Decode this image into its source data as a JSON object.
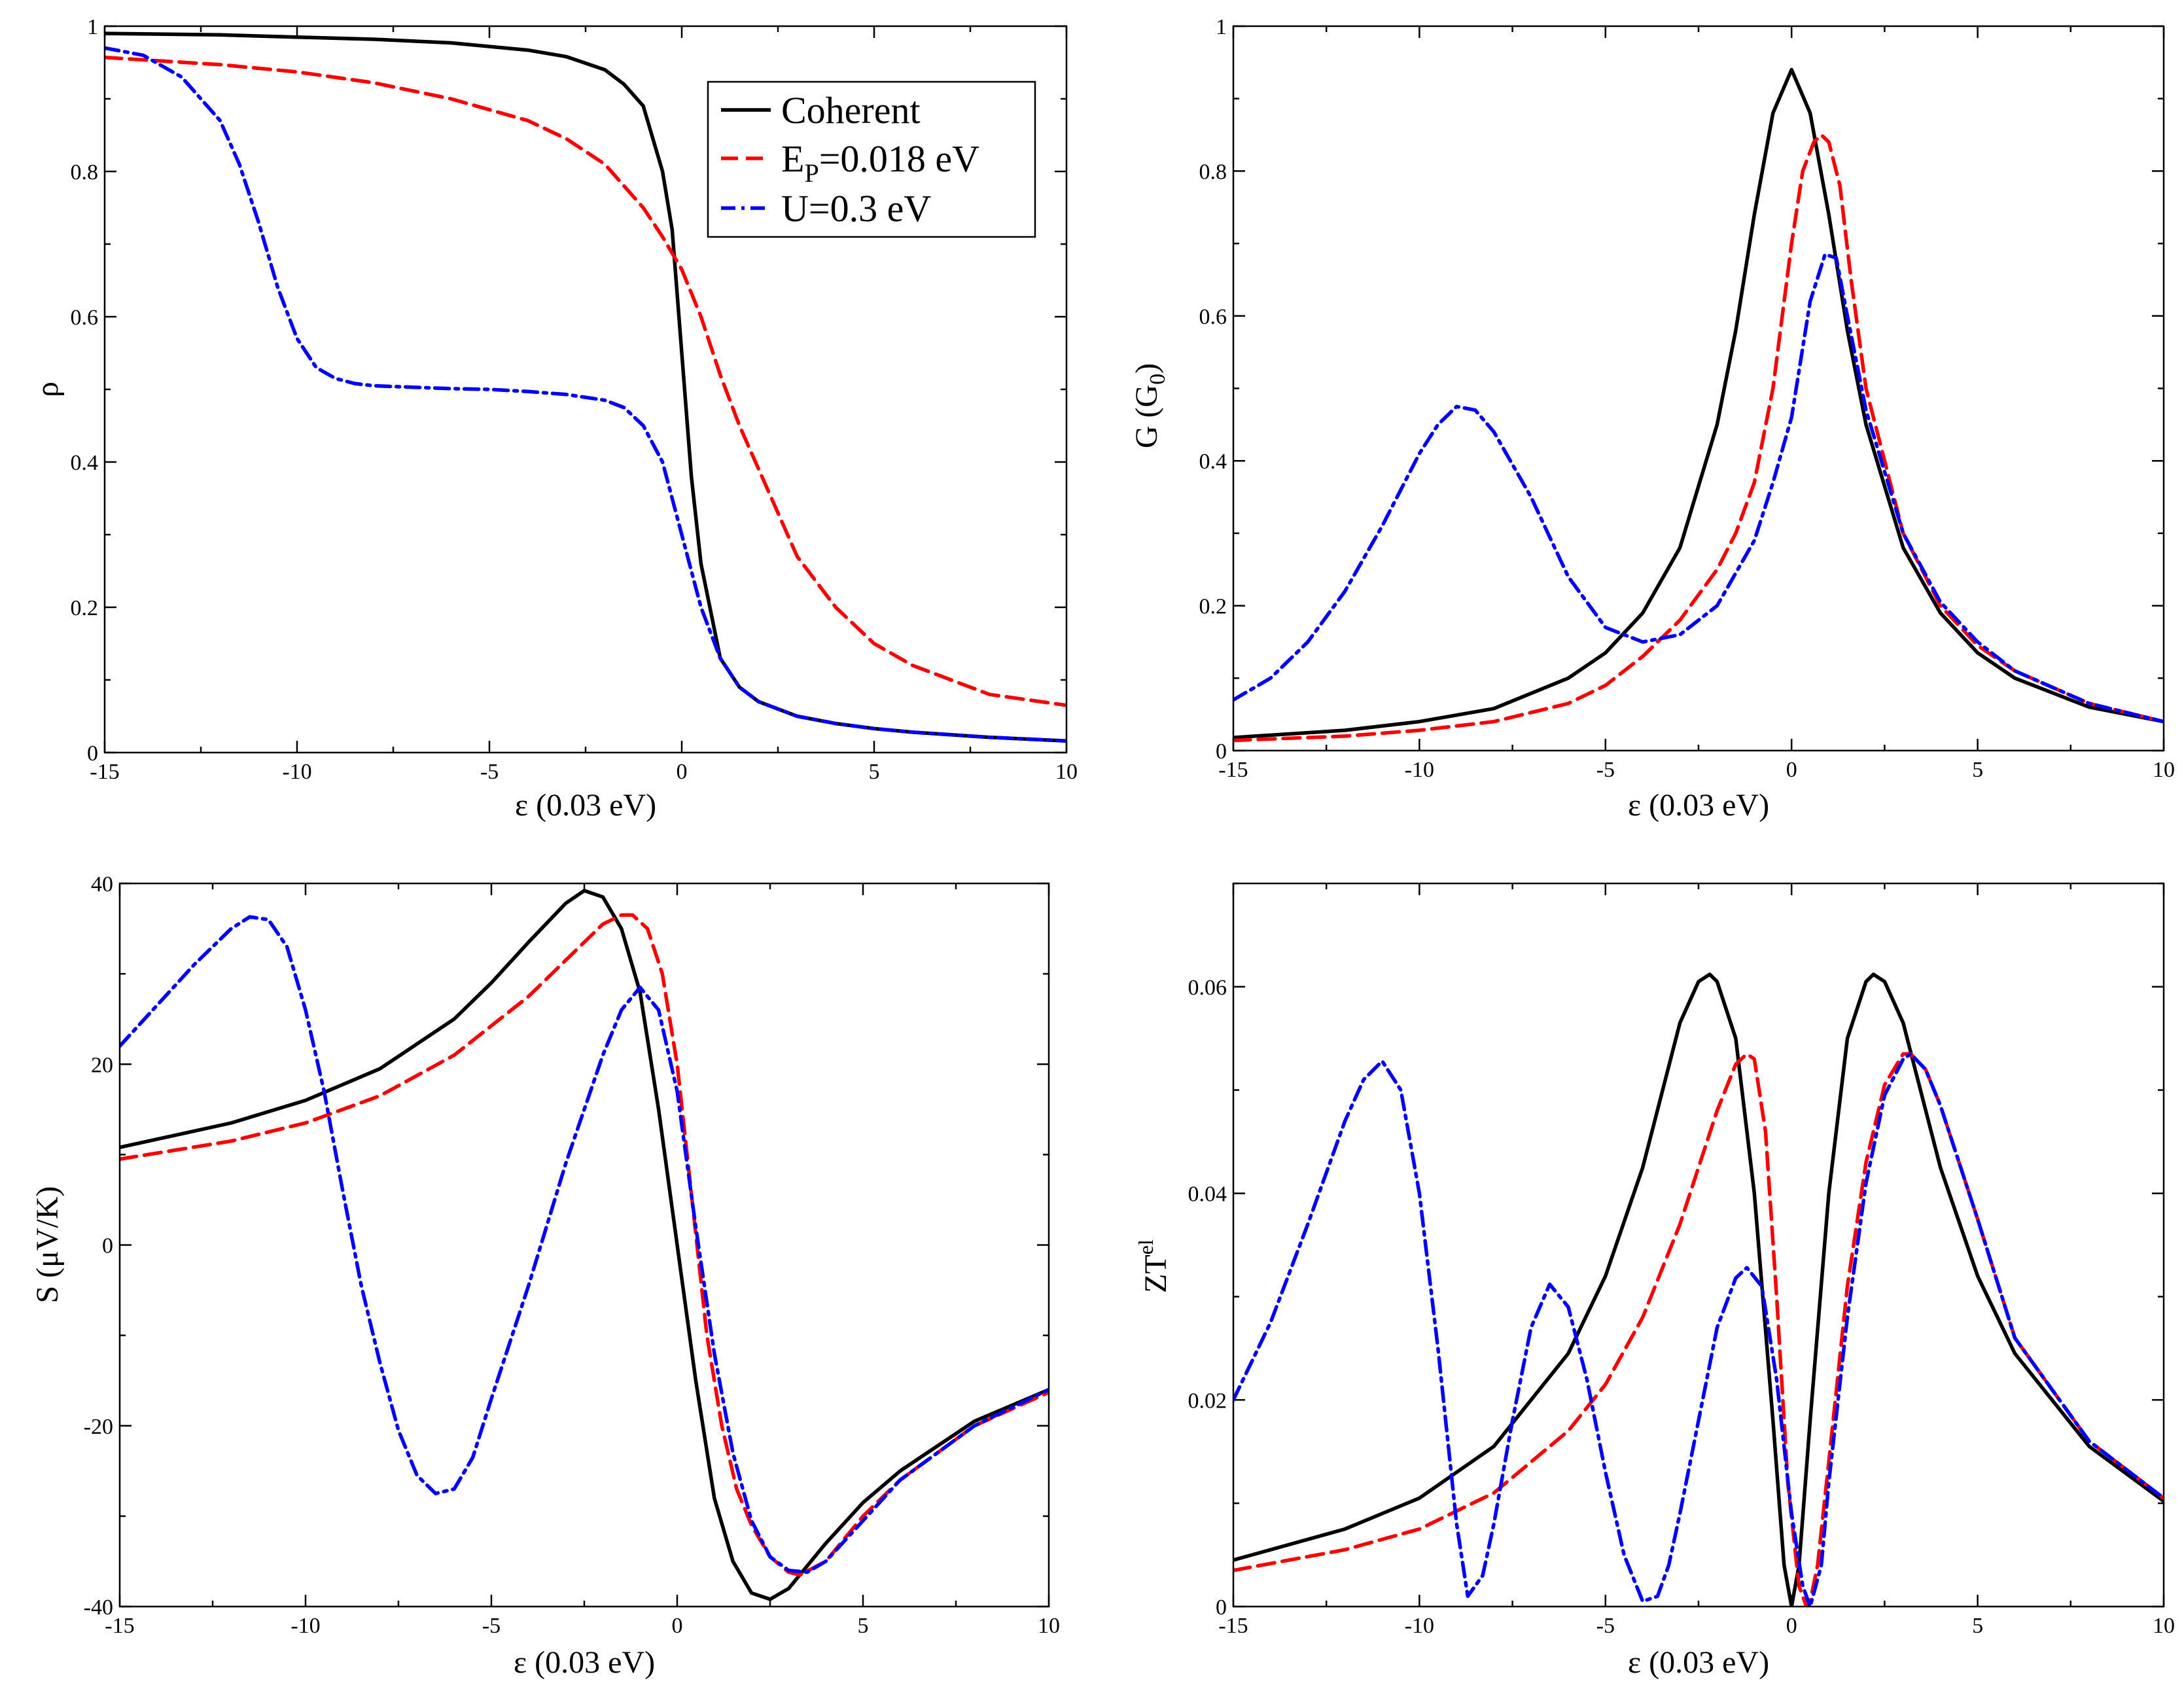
{
  "colors": {
    "coherent": "#000000",
    "phonon": "#ff0000",
    "coulomb": "#0000ff"
  },
  "legend": {
    "items": [
      {
        "key": "coherent",
        "text": "Coherent"
      },
      {
        "key": "phonon",
        "text_main": "E",
        "text_sub": "P",
        "text_rest": "=0.018 eV"
      },
      {
        "key": "coulomb",
        "text": "U=0.3 eV"
      }
    ]
  },
  "chart_data": [
    {
      "id": "rho",
      "type": "line",
      "title": "",
      "xlabel": "ε  (0.03 eV)",
      "ylabel": "ρ",
      "xlim": [
        -15,
        10
      ],
      "ylim": [
        0,
        1
      ],
      "xticks": [
        -15,
        -10,
        -5,
        0,
        5,
        10
      ],
      "yticks": [
        0,
        0.2,
        0.4,
        0.6,
        0.8,
        1
      ],
      "ytick_labels": [
        "0",
        "0.2",
        "0.4",
        "0.6",
        "0.8",
        "1"
      ],
      "series": [
        {
          "name": "Coherent",
          "key": "coherent",
          "x": [
            -15,
            -12,
            -10,
            -8,
            -6,
            -4,
            -3,
            -2,
            -1.5,
            -1,
            -0.5,
            -0.25,
            0,
            0.25,
            0.5,
            1,
            1.5,
            2,
            3,
            4,
            5,
            6,
            8,
            10
          ],
          "y": [
            0.99,
            0.988,
            0.985,
            0.982,
            0.977,
            0.967,
            0.958,
            0.94,
            0.92,
            0.89,
            0.8,
            0.72,
            0.55,
            0.38,
            0.26,
            0.13,
            0.09,
            0.07,
            0.05,
            0.04,
            0.033,
            0.028,
            0.021,
            0.016
          ]
        },
        {
          "name": "E_P=0.018 eV",
          "key": "phonon",
          "x": [
            -15,
            -12,
            -10,
            -8,
            -6,
            -4,
            -3,
            -2,
            -1,
            -0.5,
            0,
            0.5,
            1,
            1.5,
            2,
            3,
            4,
            5,
            6,
            7,
            8,
            10
          ],
          "y": [
            0.957,
            0.947,
            0.937,
            0.922,
            0.9,
            0.87,
            0.845,
            0.81,
            0.75,
            0.71,
            0.665,
            0.6,
            0.52,
            0.45,
            0.39,
            0.27,
            0.2,
            0.15,
            0.12,
            0.1,
            0.08,
            0.065
          ]
        },
        {
          "name": "U=0.3 eV",
          "key": "coulomb",
          "x": [
            -15,
            -14,
            -13,
            -12,
            -11.5,
            -11,
            -10.5,
            -10,
            -9.5,
            -9,
            -8.5,
            -8,
            -7,
            -6,
            -5,
            -4,
            -3,
            -2,
            -1.5,
            -1,
            -0.5,
            0,
            0.5,
            1,
            1.5,
            2,
            3,
            4,
            5,
            6,
            8,
            10
          ],
          "y": [
            0.97,
            0.96,
            0.93,
            0.87,
            0.81,
            0.73,
            0.64,
            0.57,
            0.53,
            0.515,
            0.508,
            0.505,
            0.503,
            0.501,
            0.5,
            0.497,
            0.493,
            0.485,
            0.475,
            0.45,
            0.4,
            0.3,
            0.2,
            0.13,
            0.09,
            0.07,
            0.05,
            0.04,
            0.033,
            0.028,
            0.021,
            0.016
          ]
        }
      ]
    },
    {
      "id": "G",
      "type": "line",
      "title": "",
      "xlabel": "ε  (0.03 eV)",
      "ylabel_main": "G (G",
      "ylabel_sub": "0",
      "ylabel_end": ")",
      "xlim": [
        -15,
        10
      ],
      "ylim": [
        0,
        1
      ],
      "xticks": [
        -15,
        -10,
        -5,
        0,
        5,
        10
      ],
      "yticks": [
        0,
        0.2,
        0.4,
        0.6,
        0.8,
        1
      ],
      "ytick_labels": [
        "0",
        "0.2",
        "0.4",
        "0.6",
        "0.8",
        "1"
      ],
      "series": [
        {
          "name": "Coherent",
          "key": "coherent",
          "x": [
            -15,
            -12,
            -10,
            -8,
            -6,
            -5,
            -4,
            -3,
            -2,
            -1.5,
            -1,
            -0.5,
            0,
            0.5,
            1,
            1.5,
            2,
            3,
            4,
            5,
            6,
            8,
            10
          ],
          "y": [
            0.018,
            0.028,
            0.04,
            0.058,
            0.1,
            0.135,
            0.19,
            0.28,
            0.45,
            0.58,
            0.74,
            0.88,
            0.94,
            0.88,
            0.74,
            0.58,
            0.45,
            0.28,
            0.19,
            0.135,
            0.1,
            0.06,
            0.04
          ]
        },
        {
          "name": "E_P=0.018 eV",
          "key": "phonon",
          "x": [
            -15,
            -12,
            -10,
            -8,
            -6,
            -5,
            -4,
            -3,
            -2,
            -1.5,
            -1,
            -0.5,
            0,
            0.3,
            0.6,
            0.8,
            1,
            1.3,
            1.6,
            2,
            3,
            4,
            5,
            6,
            8,
            10
          ],
          "y": [
            0.014,
            0.02,
            0.028,
            0.04,
            0.065,
            0.09,
            0.13,
            0.18,
            0.25,
            0.3,
            0.37,
            0.5,
            0.7,
            0.8,
            0.84,
            0.85,
            0.84,
            0.78,
            0.65,
            0.5,
            0.3,
            0.2,
            0.145,
            0.11,
            0.065,
            0.04
          ]
        },
        {
          "name": "U=0.3 eV",
          "key": "coulomb",
          "x": [
            -15,
            -14,
            -13,
            -12,
            -11,
            -10,
            -9.5,
            -9,
            -8.5,
            -8,
            -7,
            -6,
            -5,
            -4,
            -3,
            -2,
            -1,
            -0.5,
            0,
            0.5,
            0.9,
            1.2,
            1.5,
            2,
            3,
            4,
            5,
            6,
            8,
            10
          ],
          "y": [
            0.07,
            0.1,
            0.15,
            0.22,
            0.31,
            0.41,
            0.45,
            0.475,
            0.47,
            0.44,
            0.35,
            0.24,
            0.17,
            0.15,
            0.16,
            0.2,
            0.29,
            0.37,
            0.46,
            0.62,
            0.685,
            0.68,
            0.6,
            0.47,
            0.3,
            0.205,
            0.15,
            0.11,
            0.065,
            0.04
          ]
        }
      ]
    },
    {
      "id": "S",
      "type": "line",
      "title": "",
      "xlabel": "ε  (0.03 eV)",
      "ylabel": "S (μV/K)",
      "xlim": [
        -15,
        10
      ],
      "ylim": [
        -40,
        40
      ],
      "xticks": [
        -15,
        -10,
        -5,
        0,
        5,
        10
      ],
      "yticks": [
        -40,
        -20,
        0,
        20,
        40
      ],
      "ytick_labels": [
        "-40",
        "-20",
        "0",
        "20",
        "40"
      ],
      "series": [
        {
          "name": "Coherent",
          "key": "coherent",
          "x": [
            -15,
            -12,
            -10,
            -8,
            -6,
            -5,
            -4,
            -3,
            -2.5,
            -2,
            -1.5,
            -1,
            -0.5,
            0,
            0.5,
            1,
            1.5,
            2,
            2.5,
            3,
            4,
            5,
            6,
            8,
            10
          ],
          "y": [
            10.8,
            13.5,
            16,
            19.5,
            25,
            29,
            33.5,
            37.8,
            39.2,
            38.5,
            35,
            28,
            15,
            0,
            -15,
            -28,
            -35,
            -38.5,
            -39.2,
            -38,
            -33,
            -28.5,
            -25,
            -19.5,
            -16
          ]
        },
        {
          "name": "E_P=0.018 eV",
          "key": "phonon",
          "x": [
            -15,
            -12,
            -10,
            -8,
            -6,
            -4,
            -3,
            -2,
            -1.5,
            -1.2,
            -0.8,
            -0.4,
            0,
            0.4,
            0.8,
            1.2,
            1.6,
            2,
            2.5,
            3,
            3.3,
            4,
            5,
            6,
            8,
            10
          ],
          "y": [
            9.5,
            11.5,
            13.5,
            16.5,
            21,
            27.5,
            31.5,
            35.5,
            36.5,
            36.5,
            35,
            30,
            20,
            5,
            -10,
            -20,
            -27,
            -31,
            -34.5,
            -36.2,
            -36.5,
            -35,
            -30,
            -26,
            -20,
            -16.3
          ]
        },
        {
          "name": "U=0.3 eV",
          "key": "coulomb",
          "x": [
            -15,
            -14,
            -13,
            -12,
            -11.5,
            -11,
            -10.5,
            -10,
            -9.5,
            -9,
            -8.5,
            -8,
            -7.5,
            -7,
            -6.5,
            -6,
            -5.5,
            -5,
            -4,
            -3,
            -2,
            -1.5,
            -1,
            -0.5,
            0,
            0.5,
            1,
            1.5,
            2,
            2.5,
            3,
            3.5,
            4,
            5,
            6,
            8,
            10
          ],
          "y": [
            22,
            26.5,
            31,
            35,
            36.3,
            36,
            33,
            26,
            17,
            6,
            -4.5,
            -13,
            -20.5,
            -25.5,
            -27.5,
            -27,
            -23.5,
            -17,
            -4.5,
            9,
            21,
            26,
            28.5,
            26,
            17,
            2,
            -12,
            -23,
            -30.5,
            -34.5,
            -36,
            -36.2,
            -35,
            -30.5,
            -26,
            -20,
            -16
          ]
        }
      ]
    },
    {
      "id": "ZT",
      "type": "line",
      "title": "",
      "xlabel": "ε  (0.03 eV)",
      "ylabel_main": "ZT",
      "ylabel_sup": "el",
      "xlim": [
        -15,
        10
      ],
      "ylim": [
        0,
        0.07
      ],
      "xticks": [
        -15,
        -10,
        -5,
        0,
        5,
        10
      ],
      "yticks": [
        0,
        0.02,
        0.04,
        0.06
      ],
      "ytick_labels": [
        "0",
        "0.02",
        "0.04",
        "0.06"
      ],
      "series": [
        {
          "name": "Coherent",
          "key": "coherent",
          "x": [
            -15,
            -12,
            -10,
            -8,
            -6,
            -5,
            -4,
            -3,
            -2.5,
            -2.2,
            -2,
            -1.5,
            -1,
            -0.5,
            -0.2,
            0,
            0.2,
            0.5,
            1,
            1.5,
            2,
            2.2,
            2.5,
            3,
            4,
            5,
            6,
            8,
            10
          ],
          "y": [
            0.0045,
            0.0075,
            0.0105,
            0.0155,
            0.0245,
            0.032,
            0.0425,
            0.0565,
            0.0605,
            0.0612,
            0.0605,
            0.055,
            0.04,
            0.018,
            0.004,
            0,
            0.004,
            0.018,
            0.04,
            0.055,
            0.0605,
            0.0612,
            0.0605,
            0.0565,
            0.0425,
            0.032,
            0.0245,
            0.0155,
            0.0102
          ]
        },
        {
          "name": "E_P=0.018 eV",
          "key": "phonon",
          "x": [
            -15,
            -12,
            -10,
            -8,
            -6,
            -5,
            -4,
            -3,
            -2,
            -1.5,
            -1.2,
            -1,
            -0.7,
            -0.4,
            -0.1,
            0.2,
            0.4,
            0.5,
            0.7,
            1,
            1.5,
            2,
            2.5,
            3,
            3.2,
            3.6,
            4,
            5,
            6,
            8,
            10
          ],
          "y": [
            0.0035,
            0.0055,
            0.0075,
            0.011,
            0.017,
            0.0215,
            0.028,
            0.037,
            0.048,
            0.0525,
            0.0535,
            0.053,
            0.046,
            0.03,
            0.012,
            0.002,
            0,
            0.0005,
            0.004,
            0.014,
            0.031,
            0.043,
            0.0505,
            0.0535,
            0.0535,
            0.052,
            0.0485,
            0.0375,
            0.026,
            0.016,
            0.0105
          ]
        },
        {
          "name": "U=0.3 eV",
          "key": "coulomb",
          "x": [
            -15,
            -14,
            -13,
            -12,
            -11.5,
            -11,
            -10.5,
            -10,
            -9.5,
            -9,
            -8.7,
            -8.3,
            -8,
            -7.5,
            -7,
            -6.5,
            -6,
            -5.5,
            -5,
            -4.5,
            -4,
            -3.6,
            -3.3,
            -3,
            -2.5,
            -2,
            -1.5,
            -1.2,
            -0.8,
            -0.4,
            0,
            0.3,
            0.5,
            0.8,
            1,
            1.5,
            2,
            2.5,
            3,
            3.2,
            3.6,
            4,
            5,
            6,
            8,
            10
          ],
          "y": [
            0.02,
            0.0275,
            0.037,
            0.047,
            0.051,
            0.0528,
            0.05,
            0.04,
            0.025,
            0.008,
            0.001,
            0.003,
            0.008,
            0.018,
            0.027,
            0.0312,
            0.029,
            0.022,
            0.013,
            0.005,
            0.0005,
            0.001,
            0.004,
            0.009,
            0.018,
            0.027,
            0.0318,
            0.0328,
            0.031,
            0.022,
            0.009,
            0.002,
            0,
            0.004,
            0.012,
            0.028,
            0.041,
            0.0495,
            0.053,
            0.0535,
            0.052,
            0.0485,
            0.0375,
            0.026,
            0.016,
            0.0105
          ]
        }
      ]
    }
  ]
}
